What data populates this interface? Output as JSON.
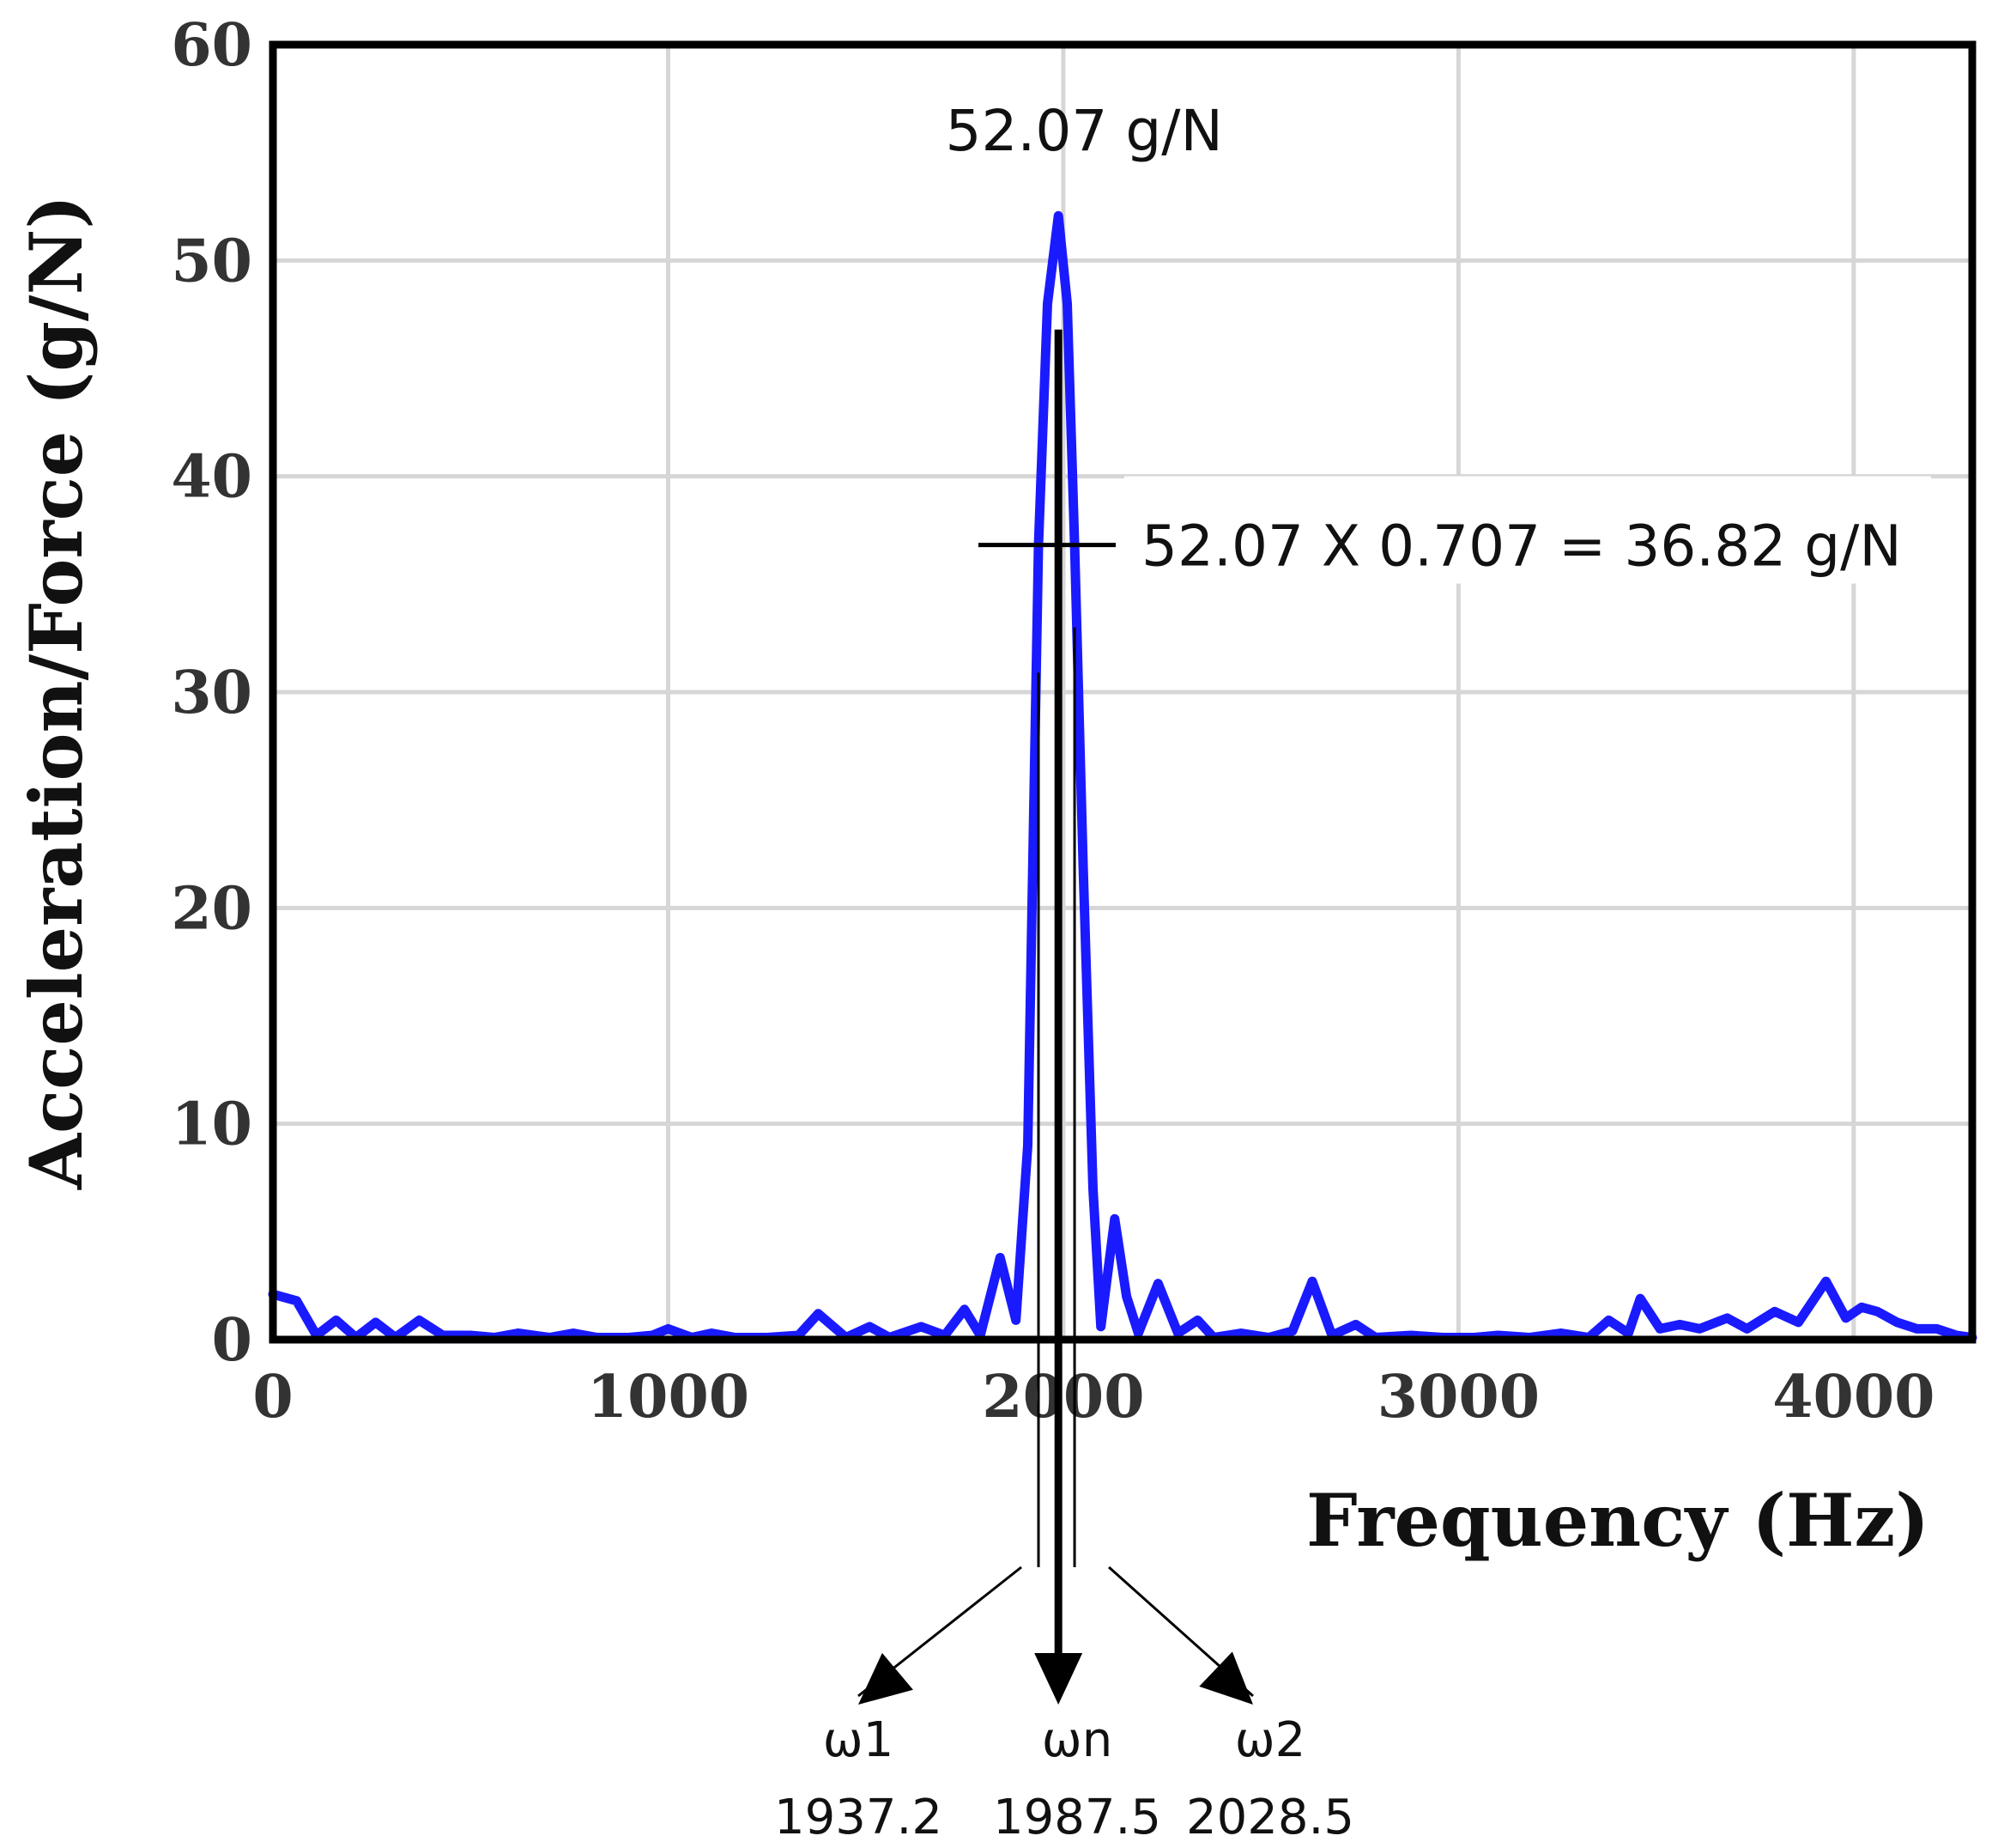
{
  "chart_data": {
    "type": "line",
    "xlabel": "Frequency (Hz)",
    "ylabel": "Acceleration/Force (g/N)",
    "xlim": [
      0,
      4300
    ],
    "ylim": [
      0,
      60
    ],
    "x_ticks": [
      0,
      1000,
      2000,
      3000,
      4000
    ],
    "y_ticks": [
      0,
      10,
      20,
      30,
      40,
      50,
      60
    ],
    "x_tick_labels": [
      "0",
      "1000",
      "2000",
      "3000",
      "4000"
    ],
    "y_tick_labels": [
      "0",
      "10",
      "20",
      "30",
      "40",
      "50",
      "60"
    ],
    "grid": true,
    "line_color": "#1a1aff",
    "series": [
      {
        "points": [
          [
            0,
            2.1
          ],
          [
            60,
            1.8
          ],
          [
            110,
            0.2
          ],
          [
            160,
            0.9
          ],
          [
            210,
            0.1
          ],
          [
            260,
            0.8
          ],
          [
            310,
            0.1
          ],
          [
            370,
            0.9
          ],
          [
            430,
            0.2
          ],
          [
            500,
            0.2
          ],
          [
            560,
            0.1
          ],
          [
            620,
            0.3
          ],
          [
            700,
            0.1
          ],
          [
            760,
            0.3
          ],
          [
            820,
            0.1
          ],
          [
            900,
            0.1
          ],
          [
            960,
            0.2
          ],
          [
            1000,
            0.5
          ],
          [
            1060,
            0.1
          ],
          [
            1110,
            0.3
          ],
          [
            1170,
            0.1
          ],
          [
            1250,
            0.1
          ],
          [
            1330,
            0.2
          ],
          [
            1380,
            1.2
          ],
          [
            1450,
            0.1
          ],
          [
            1510,
            0.6
          ],
          [
            1560,
            0.1
          ],
          [
            1640,
            0.6
          ],
          [
            1700,
            0.2
          ],
          [
            1750,
            1.4
          ],
          [
            1790,
            0.2
          ],
          [
            1840,
            3.8
          ],
          [
            1880,
            0.9
          ],
          [
            1910,
            9
          ],
          [
            1937.2,
            36.8
          ],
          [
            1960,
            48
          ],
          [
            1987.5,
            52.07
          ],
          [
            2010,
            48
          ],
          [
            2028.5,
            36.8
          ],
          [
            2050,
            22
          ],
          [
            2075,
            7
          ],
          [
            2095,
            0.6
          ],
          [
            2130,
            5.6
          ],
          [
            2160,
            2
          ],
          [
            2190,
            0.3
          ],
          [
            2240,
            2.6
          ],
          [
            2290,
            0.3
          ],
          [
            2340,
            0.9
          ],
          [
            2380,
            0.1
          ],
          [
            2450,
            0.3
          ],
          [
            2520,
            0.1
          ],
          [
            2580,
            0.4
          ],
          [
            2630,
            2.7
          ],
          [
            2680,
            0.2
          ],
          [
            2740,
            0.7
          ],
          [
            2790,
            0.1
          ],
          [
            2880,
            0.2
          ],
          [
            2960,
            0.1
          ],
          [
            3040,
            0.1
          ],
          [
            3100,
            0.2
          ],
          [
            3180,
            0.1
          ],
          [
            3260,
            0.3
          ],
          [
            3330,
            0.1
          ],
          [
            3380,
            0.9
          ],
          [
            3430,
            0.3
          ],
          [
            3460,
            1.9
          ],
          [
            3510,
            0.5
          ],
          [
            3560,
            0.7
          ],
          [
            3610,
            0.5
          ],
          [
            3680,
            1.0
          ],
          [
            3730,
            0.5
          ],
          [
            3800,
            1.3
          ],
          [
            3860,
            0.8
          ],
          [
            3930,
            2.7
          ],
          [
            3980,
            1.0
          ],
          [
            4020,
            1.5
          ],
          [
            4060,
            1.3
          ],
          [
            4110,
            0.8
          ],
          [
            4160,
            0.5
          ],
          [
            4210,
            0.5
          ],
          [
            4260,
            0.2
          ],
          [
            4300,
            0.1
          ]
        ]
      }
    ],
    "annotations": {
      "peak_label": "52.07 g/N",
      "half_power_label": "52.07 X 0.707 = 36.82 g/N",
      "half_power_value": 36.82,
      "markers": [
        {
          "symbol": "ω1",
          "value_label": "1937.2",
          "x": 1937.2
        },
        {
          "symbol": "ωn",
          "value_label": "1987.5",
          "x": 1987.5
        },
        {
          "symbol": "ω2",
          "value_label": "2028.5",
          "x": 2028.5
        }
      ]
    }
  }
}
